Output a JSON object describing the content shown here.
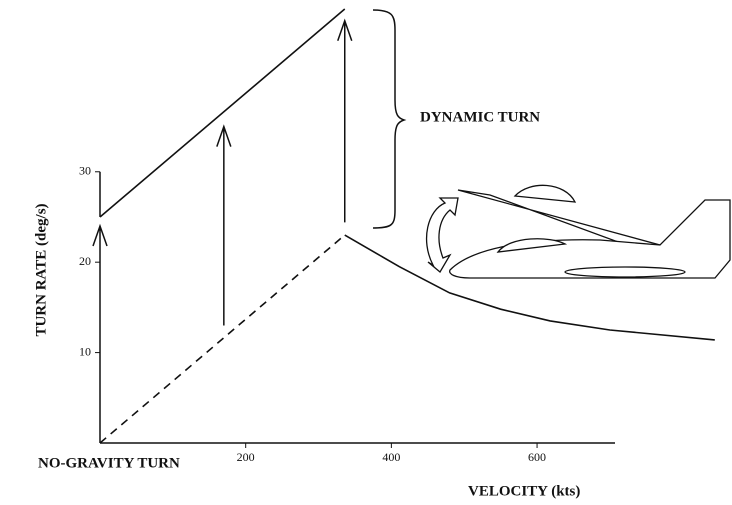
{
  "chart_data": {
    "type": "line",
    "x_label": "VELOCITY (kts)",
    "y_label": "TURN RATE (deg/s)",
    "annotations": [
      "DYNAMIC TURN",
      "NO-GRAVITY TURN"
    ],
    "xlim": [
      0,
      707
    ],
    "ylim": [
      0,
      49
    ],
    "xticks": [
      200,
      400,
      600
    ],
    "yticks": [
      10,
      20,
      30
    ],
    "series": [
      {
        "color": "#111",
        "dashed": false,
        "x": [
          0,
          336
        ],
        "values": [
          25,
          48
        ]
      },
      {
        "color": "#111",
        "dashed": true,
        "x": [
          0,
          336
        ],
        "values": [
          0,
          23
        ]
      },
      {
        "color": "#111",
        "dashed": false,
        "x": [
          336,
          411,
          480,
          550,
          618,
          700,
          844
        ],
        "values": [
          23,
          19.5,
          16.6,
          14.8,
          13.5,
          12.5,
          11.4
        ]
      }
    ],
    "arrows": [
      {
        "x": 0,
        "from": 0,
        "to": 24
      },
      {
        "x": 170,
        "from": 13,
        "to": 35
      },
      {
        "x": 336,
        "from": 24.4,
        "to": 46.7
      }
    ]
  }
}
